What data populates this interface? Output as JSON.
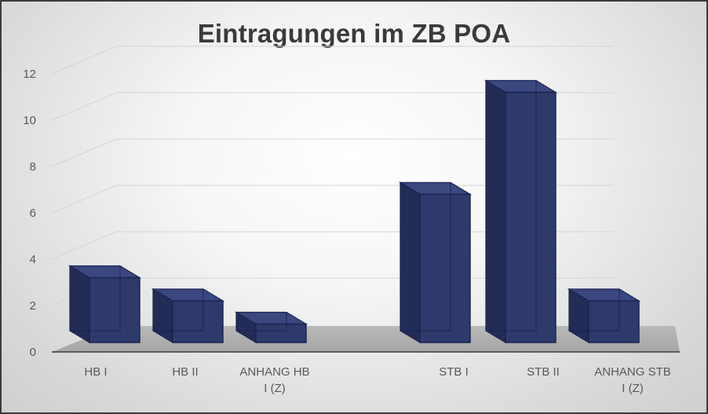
{
  "chart_data": {
    "type": "bar",
    "title": "Eintragungen im ZB POA",
    "categories": [
      "HB I",
      "HB II",
      "ANHANG HB I (Z)",
      "",
      "STB I",
      "STB II",
      "ANHANG STB I (Z)"
    ],
    "category_lines": [
      [
        "HB I"
      ],
      [
        "HB II"
      ],
      [
        "ANHANG HB",
        "I (Z)"
      ],
      [],
      [
        "STB I"
      ],
      [
        "STB II"
      ],
      [
        "ANHANG STB",
        "I (Z)"
      ]
    ],
    "values": [
      3,
      2,
      1,
      null,
      6.6,
      11,
      2
    ],
    "ylim": [
      0,
      12
    ],
    "yticks": [
      0,
      2,
      4,
      6,
      8,
      10,
      12
    ],
    "grid": true,
    "legend": "none",
    "bar_color": "#2e3a6b",
    "bar_stroke": "#1a2250"
  }
}
